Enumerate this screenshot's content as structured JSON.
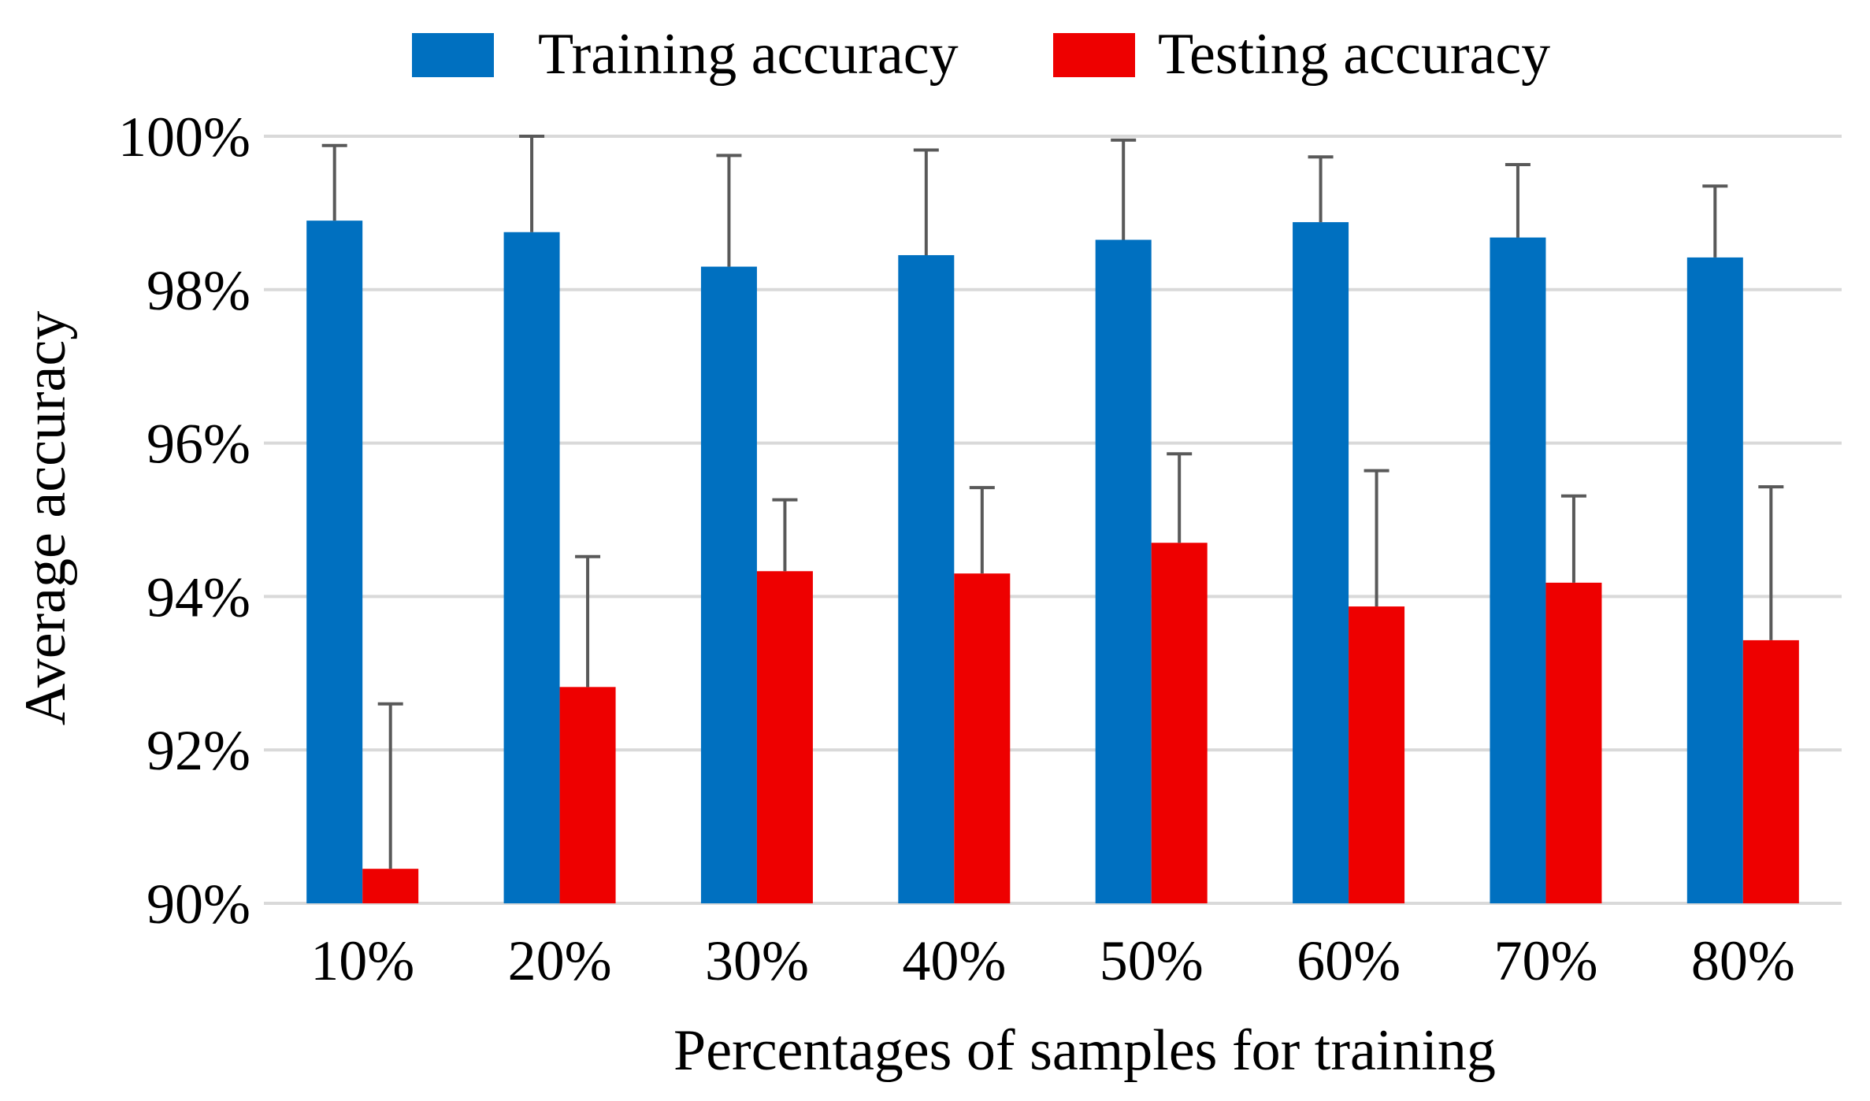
{
  "chart_data": {
    "type": "bar",
    "title": "",
    "xlabel": "Percentages of samples for training",
    "ylabel": "Average accuracy",
    "categories": [
      "10%",
      "20%",
      "30%",
      "40%",
      "50%",
      "60%",
      "70%",
      "80%"
    ],
    "y_ticks": [
      "90%",
      "92%",
      "94%",
      "96%",
      "98%",
      "100%"
    ],
    "ylim": [
      90,
      100
    ],
    "grid": true,
    "legend_position": "top-center",
    "series": [
      {
        "name": "Training accuracy",
        "color": "#0070C0",
        "values": [
          98.9,
          98.75,
          98.3,
          98.45,
          98.65,
          98.88,
          98.68,
          98.42
        ],
        "errors": [
          0.98,
          1.25,
          1.45,
          1.37,
          1.3,
          0.85,
          0.95,
          0.93
        ]
      },
      {
        "name": "Testing accuracy",
        "color": "#EE0000",
        "values": [
          90.45,
          92.82,
          94.33,
          94.3,
          94.7,
          93.87,
          94.18,
          93.43
        ],
        "errors": [
          2.15,
          1.7,
          0.93,
          1.12,
          1.16,
          1.77,
          1.13,
          2.0
        ]
      }
    ],
    "error_bar_color": "#595959",
    "gridline_color": "#D9D9D9"
  }
}
